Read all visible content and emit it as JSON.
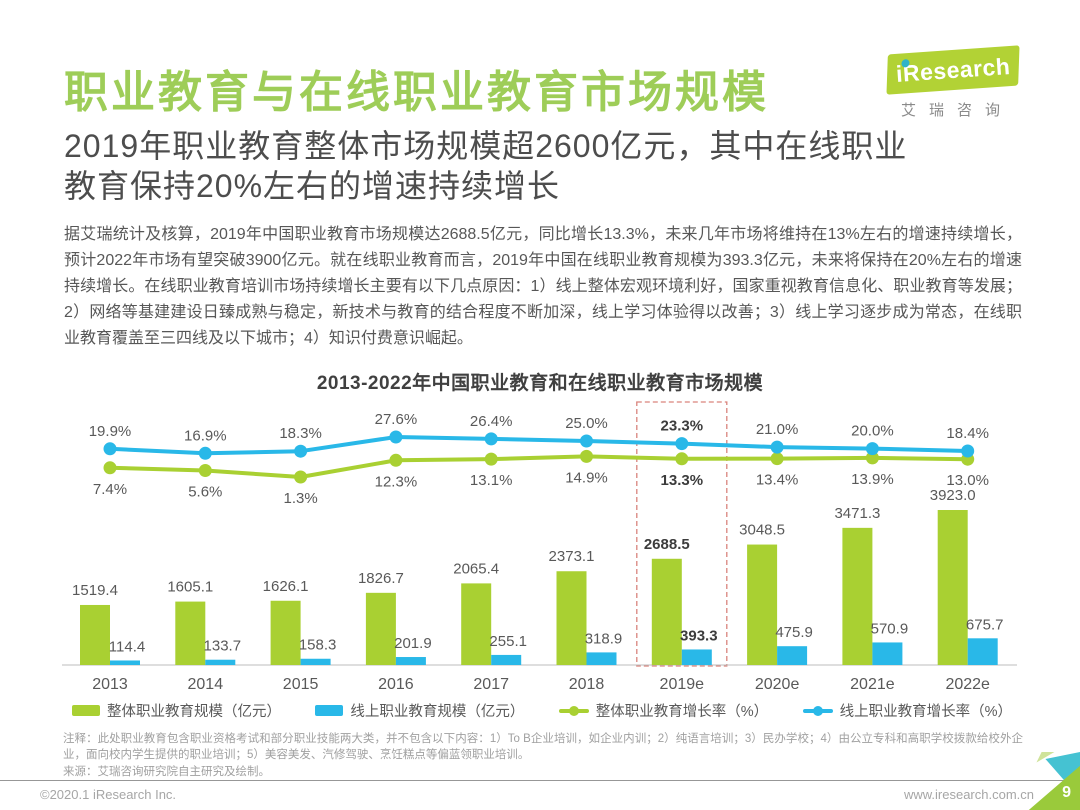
{
  "header": {
    "title": "职业教育与在线职业教育市场规模",
    "subtitle_line1": "2019年职业教育整体市场规模超2600亿元，其中在线职业",
    "subtitle_line2": "教育保持20%左右的增速持续增长",
    "logo": {
      "brand": "iResearch",
      "brand_cn": "艾瑞咨询"
    }
  },
  "intro": {
    "paragraph": "据艾瑞统计及核算，2019年中国职业教育市场规模达2688.5亿元，同比增长13.3%，未来几年市场将维持在13%左右的增速持续增长，预计2022年市场有望突破3900亿元。就在线职业教育而言，2019年中国在线职业教育规模为393.3亿元，未来将保持在20%左右的增速持续增长。在线职业教育培训市场持续增长主要有以下几点原因：1）线上整体宏观环境利好，国家重视教育信息化、职业教育等发展；2）网络等基建建设日臻成熟与稳定，新技术与教育的结合程度不断加深，线上学习体验得以改善；3）线上学习逐步成为常态，在线职业教育覆盖至三四线及以下城市；4）知识付费意识崛起。"
  },
  "chart_data": {
    "type": "combo_bar_line",
    "title": "2013-2022年中国职业教育和在线职业教育市场规模",
    "categories": [
      "2013",
      "2014",
      "2015",
      "2016",
      "2017",
      "2018",
      "2019e",
      "2020e",
      "2021e",
      "2022e"
    ],
    "series": [
      {
        "name": "整体职业教育规模（亿元）",
        "type": "bar",
        "color": "#a9d032",
        "values": [
          1519.4,
          1605.1,
          1626.1,
          1826.7,
          2065.4,
          2373.1,
          2688.5,
          3048.5,
          3471.3,
          3923.0
        ]
      },
      {
        "name": "线上职业教育规模（亿元）",
        "type": "bar",
        "color": "#29b8e8",
        "values": [
          114.4,
          133.7,
          158.3,
          201.9,
          255.1,
          318.9,
          393.3,
          475.9,
          570.9,
          675.7
        ]
      },
      {
        "name": "整体职业教育增长率（%）",
        "type": "line",
        "color": "#a9d032",
        "values": [
          7.4,
          5.6,
          1.3,
          12.3,
          13.1,
          14.9,
          13.3,
          13.4,
          13.9,
          13.0
        ]
      },
      {
        "name": "线上职业教育增长率（%）",
        "type": "line",
        "color": "#29b8e8",
        "values": [
          19.9,
          16.9,
          18.3,
          27.6,
          26.4,
          25.0,
          23.3,
          21.0,
          20.0,
          18.4
        ]
      }
    ],
    "highlight": {
      "category": "2019e",
      "box_color": "#d9837c"
    },
    "primary_ylim": [
      0,
      4000
    ],
    "secondary_ylim": [
      0,
      30
    ],
    "grid": false,
    "legend_position": "bottom"
  },
  "footnote": {
    "note": "注释：此处职业教育包含职业资格考试和部分职业技能两大类，并不包含以下内容：1）To B企业培训，如企业内训；2）纯语言培训；3）民办学校；4）由公立专科和高职学校拨款给校外企业，面向校内学生提供的职业培训；5）美容美发、汽修驾驶、烹饪糕点等偏蓝领职业培训。",
    "source": "来源：艾瑞咨询研究院自主研究及绘制。"
  },
  "footer": {
    "copyright": "©2020.1 iResearch Inc.",
    "website": "www.iresearch.com.cn",
    "page_number": "9"
  }
}
